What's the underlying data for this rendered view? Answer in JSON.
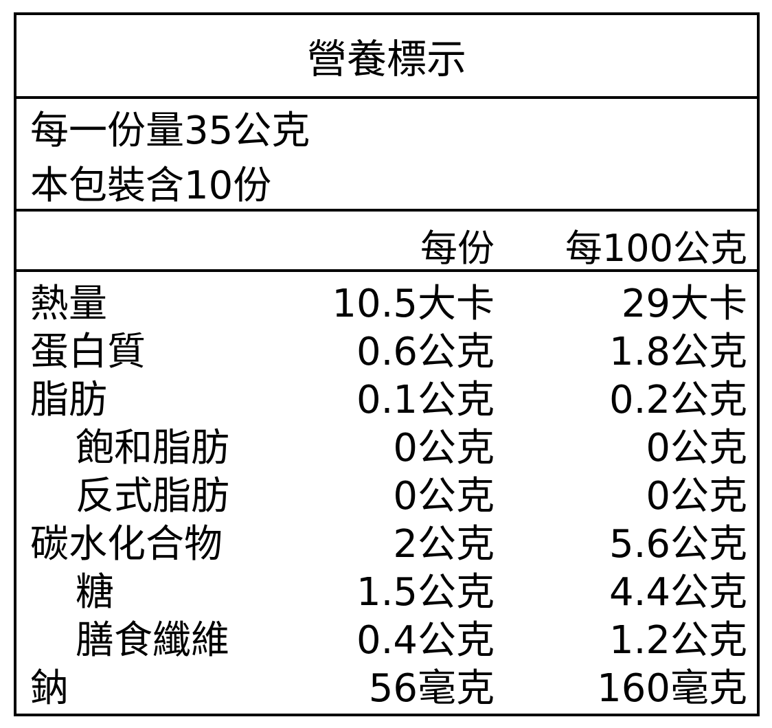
{
  "title": "營養標示",
  "serving_size": "每一份量35公克",
  "servings_per_package": "本包裝含10份",
  "columns": {
    "per_serving": "每份",
    "per_100g": "每100公克"
  },
  "rows": [
    {
      "name": "熱量",
      "per_serving": "10.5大卡",
      "per_100g": "29大卡",
      "indent": false
    },
    {
      "name": "蛋白質",
      "per_serving": "0.6公克",
      "per_100g": "1.8公克",
      "indent": false
    },
    {
      "name": "脂肪",
      "per_serving": "0.1公克",
      "per_100g": "0.2公克",
      "indent": false
    },
    {
      "name": "飽和脂肪",
      "per_serving": "0公克",
      "per_100g": "0公克",
      "indent": true
    },
    {
      "name": "反式脂肪",
      "per_serving": "0公克",
      "per_100g": "0公克",
      "indent": true
    },
    {
      "name": "碳水化合物",
      "per_serving": "2公克",
      "per_100g": "5.6公克",
      "indent": false
    },
    {
      "name": "糖",
      "per_serving": "1.5公克",
      "per_100g": "4.4公克",
      "indent": true
    },
    {
      "name": "膳食纖維",
      "per_serving": "0.4公克",
      "per_100g": "1.2公克",
      "indent": true
    },
    {
      "name": "鈉",
      "per_serving": "56毫克",
      "per_100g": "160毫克",
      "indent": false
    }
  ]
}
